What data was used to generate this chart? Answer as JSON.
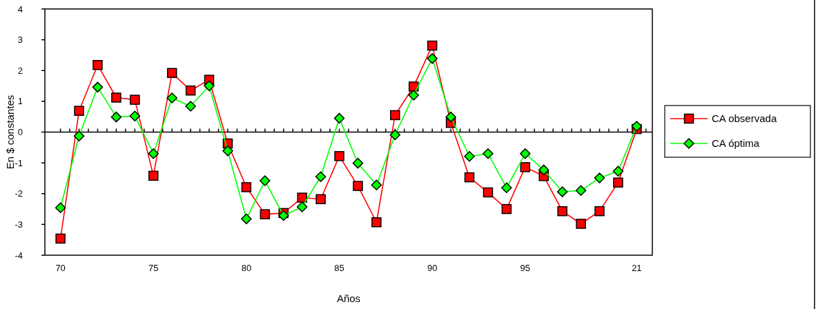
{
  "chart_data": {
    "type": "line",
    "xlabel": "Años",
    "ylabel": "En $ constantes",
    "categories": [
      "70",
      null,
      null,
      null,
      null,
      "75",
      null,
      null,
      null,
      null,
      "80",
      null,
      null,
      null,
      null,
      "85",
      null,
      null,
      null,
      null,
      "90",
      null,
      null,
      null,
      null,
      "95",
      null,
      null,
      null,
      null,
      null,
      "21"
    ],
    "ylim": [
      -4,
      4
    ],
    "yticks": [
      -4,
      -3,
      -2,
      -1,
      0,
      1,
      2,
      3,
      4
    ],
    "legend": "right",
    "series": [
      {
        "name": "CA observada",
        "color": "#ff0000",
        "marker": "square",
        "values": [
          -3.46,
          0.69,
          2.18,
          1.12,
          1.05,
          -1.42,
          1.92,
          1.35,
          1.7,
          -0.37,
          -1.79,
          -2.67,
          -2.63,
          -2.13,
          -2.18,
          -0.78,
          -1.75,
          -2.93,
          0.55,
          1.48,
          2.81,
          0.3,
          -1.47,
          -1.96,
          -2.5,
          -1.14,
          -1.43,
          -2.57,
          -2.98,
          -2.57,
          -1.64,
          0.1
        ]
      },
      {
        "name": "CA óptima",
        "color": "#00ff00",
        "marker": "diamond",
        "values": [
          -2.46,
          -0.13,
          1.46,
          0.49,
          0.52,
          -0.7,
          1.11,
          0.84,
          1.5,
          -0.61,
          -2.82,
          -1.58,
          -2.71,
          -2.43,
          -1.45,
          0.45,
          -1.01,
          -1.72,
          -0.09,
          1.2,
          2.39,
          0.49,
          -0.79,
          -0.7,
          -1.81,
          -0.7,
          -1.23,
          -1.94,
          -1.9,
          -1.49,
          -1.27,
          0.19
        ]
      }
    ]
  }
}
